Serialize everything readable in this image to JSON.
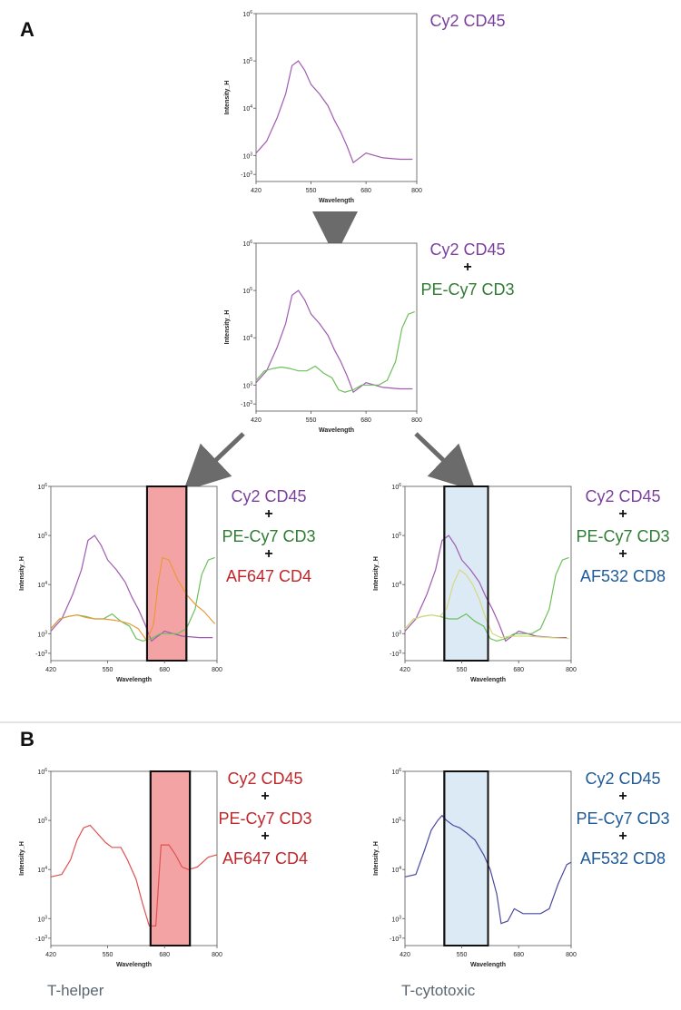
{
  "panels": {
    "A": "A",
    "B": "B"
  },
  "cell_labels": {
    "t_helper": "T-helper",
    "t_cytotoxic": "T-cytotoxic"
  },
  "colors": {
    "cy2": "#a05bb0",
    "pecy7": "#6cc05a",
    "af647": "#e89a3a",
    "af532": "#d9d880",
    "th_mix": "#e05050",
    "tc_mix": "#4a4aa0",
    "purple_text": "#7b3f9e",
    "green_text": "#2e7d32",
    "red_text": "#c0262a",
    "blue_text": "#1f5a99",
    "red_box": "#f4a3a5",
    "blue_box": "#dbeaf5",
    "arrow": "#6b6b6b"
  },
  "chart_data": [
    {
      "id": "A1",
      "type": "line",
      "xlabel": "Wavelength",
      "ylabel": "Intensity_H",
      "xticks": [
        420,
        550,
        680,
        800
      ],
      "yticks": [
        "10^6",
        "10^5",
        "10^4",
        "10^3",
        "-10^3"
      ],
      "xlim": [
        420,
        800
      ],
      "ylim_log10": [
        2.45,
        6
      ],
      "series": [
        {
          "key": "cy2",
          "x": [
            420,
            445,
            470,
            490,
            505,
            520,
            535,
            550,
            570,
            590,
            605,
            620,
            635,
            650,
            680,
            720,
            760,
            790
          ],
          "y": [
            3.05,
            3.3,
            3.8,
            4.3,
            4.9,
            5.0,
            4.8,
            4.5,
            4.3,
            4.05,
            3.75,
            3.5,
            3.2,
            2.85,
            3.05,
            2.95,
            2.92,
            2.92
          ]
        }
      ],
      "legend": [
        {
          "text": "Cy2 CD45",
          "color": "purple_text"
        }
      ]
    },
    {
      "id": "A2",
      "type": "line",
      "xlabel": "Wavelength",
      "ylabel": "Intensity_H",
      "xticks": [
        420,
        550,
        680,
        800
      ],
      "yticks": [
        "10^6",
        "10^5",
        "10^4",
        "10^3",
        "-10^3"
      ],
      "xlim": [
        420,
        800
      ],
      "ylim_log10": [
        2.45,
        6
      ],
      "series": [
        {
          "key": "cy2",
          "x": [
            420,
            445,
            470,
            490,
            505,
            520,
            535,
            550,
            570,
            590,
            605,
            620,
            635,
            650,
            680,
            720,
            760,
            790
          ],
          "y": [
            3.05,
            3.3,
            3.8,
            4.3,
            4.9,
            5.0,
            4.8,
            4.5,
            4.3,
            4.05,
            3.75,
            3.5,
            3.2,
            2.85,
            3.05,
            2.95,
            2.92,
            2.92
          ]
        },
        {
          "key": "pecy7",
          "x": [
            420,
            440,
            460,
            480,
            500,
            520,
            540,
            560,
            580,
            600,
            615,
            630,
            650,
            670,
            690,
            710,
            730,
            750,
            765,
            780,
            795
          ],
          "y": [
            3.1,
            3.3,
            3.35,
            3.38,
            3.35,
            3.3,
            3.3,
            3.4,
            3.25,
            3.15,
            2.9,
            2.85,
            2.9,
            3.0,
            3.0,
            3.0,
            3.1,
            3.5,
            4.2,
            4.5,
            4.55
          ]
        }
      ],
      "legend": [
        {
          "text": "Cy2 CD45",
          "color": "purple_text"
        },
        {
          "text": "PE-Cy7 CD3",
          "color": "green_text"
        }
      ]
    },
    {
      "id": "A3",
      "type": "line",
      "xlabel": "Wavelength",
      "ylabel": "Intensity_H",
      "xticks": [
        420,
        550,
        680,
        800
      ],
      "yticks": [
        "10^6",
        "10^5",
        "10^4",
        "10^3",
        "-10^3"
      ],
      "xlim": [
        420,
        800
      ],
      "ylim_log10": [
        2.45,
        6
      ],
      "highlight": {
        "x0": 640,
        "x1": 730,
        "color": "red_box"
      },
      "series": [
        {
          "key": "cy2",
          "x": [
            420,
            445,
            470,
            490,
            505,
            520,
            535,
            550,
            570,
            590,
            605,
            620,
            635,
            650,
            680,
            720,
            760,
            790
          ],
          "y": [
            3.05,
            3.3,
            3.8,
            4.3,
            4.9,
            5.0,
            4.8,
            4.5,
            4.3,
            4.05,
            3.75,
            3.5,
            3.2,
            2.85,
            3.05,
            2.95,
            2.92,
            2.92
          ]
        },
        {
          "key": "pecy7",
          "x": [
            420,
            440,
            460,
            480,
            500,
            520,
            540,
            560,
            580,
            600,
            615,
            630,
            650,
            670,
            690,
            710,
            730,
            750,
            765,
            780,
            795
          ],
          "y": [
            3.1,
            3.3,
            3.35,
            3.38,
            3.35,
            3.3,
            3.3,
            3.4,
            3.25,
            3.15,
            2.9,
            2.85,
            2.9,
            3.0,
            3.0,
            3.0,
            3.1,
            3.5,
            4.2,
            4.5,
            4.55
          ]
        },
        {
          "key": "af647",
          "x": [
            420,
            440,
            460,
            480,
            500,
            520,
            540,
            560,
            580,
            600,
            620,
            640,
            655,
            665,
            675,
            690,
            710,
            730,
            750,
            770,
            795
          ],
          "y": [
            3.1,
            3.3,
            3.35,
            3.38,
            3.33,
            3.3,
            3.3,
            3.28,
            3.25,
            3.2,
            3.1,
            2.85,
            3.2,
            4.0,
            4.55,
            4.5,
            4.1,
            3.8,
            3.6,
            3.45,
            3.2
          ]
        }
      ],
      "legend": [
        {
          "text": "Cy2 CD45",
          "color": "purple_text"
        },
        {
          "text": "PE-Cy7 CD3",
          "color": "green_text"
        },
        {
          "text": "AF647 CD4",
          "color": "red_text"
        }
      ]
    },
    {
      "id": "A4",
      "type": "line",
      "xlabel": "Wavelength",
      "ylabel": "Intensity_H",
      "xticks": [
        420,
        550,
        680,
        800
      ],
      "yticks": [
        "10^6",
        "10^5",
        "10^4",
        "10^3",
        "-10^3"
      ],
      "xlim": [
        420,
        800
      ],
      "ylim_log10": [
        2.45,
        6
      ],
      "highlight": {
        "x0": 510,
        "x1": 610,
        "color": "blue_box"
      },
      "series": [
        {
          "key": "cy2",
          "x": [
            420,
            445,
            470,
            490,
            505,
            520,
            535,
            550,
            570,
            590,
            605,
            620,
            635,
            650,
            680,
            720,
            760,
            790
          ],
          "y": [
            3.05,
            3.3,
            3.8,
            4.3,
            4.9,
            5.0,
            4.8,
            4.5,
            4.3,
            4.05,
            3.75,
            3.5,
            3.2,
            2.85,
            3.05,
            2.95,
            2.92,
            2.92
          ]
        },
        {
          "key": "pecy7",
          "x": [
            420,
            440,
            460,
            480,
            500,
            520,
            540,
            560,
            580,
            600,
            615,
            630,
            650,
            670,
            690,
            710,
            730,
            750,
            765,
            780,
            795
          ],
          "y": [
            3.1,
            3.3,
            3.35,
            3.38,
            3.35,
            3.3,
            3.3,
            3.4,
            3.25,
            3.15,
            2.9,
            2.85,
            2.9,
            3.0,
            3.0,
            3.0,
            3.1,
            3.5,
            4.2,
            4.5,
            4.55
          ]
        },
        {
          "key": "af532",
          "x": [
            420,
            440,
            460,
            480,
            500,
            515,
            530,
            545,
            560,
            575,
            590,
            605,
            620,
            640,
            660,
            700,
            750,
            795
          ],
          "y": [
            3.1,
            3.3,
            3.35,
            3.38,
            3.35,
            3.5,
            4.0,
            4.3,
            4.2,
            4.0,
            3.7,
            3.3,
            3.0,
            2.92,
            2.95,
            2.95,
            2.92,
            2.9
          ]
        }
      ],
      "legend": [
        {
          "text": "Cy2 CD45",
          "color": "purple_text"
        },
        {
          "text": "PE-Cy7 CD3",
          "color": "green_text"
        },
        {
          "text": "AF532 CD8",
          "color": "blue_text"
        }
      ]
    },
    {
      "id": "B1",
      "type": "line",
      "xlabel": "Wavelength",
      "ylabel": "Intensity_H",
      "xticks": [
        420,
        550,
        680,
        800
      ],
      "yticks": [
        "10^6",
        "10^5",
        "10^4",
        "10^3",
        "-10^3"
      ],
      "xlim": [
        420,
        800
      ],
      "ylim_log10": [
        2.45,
        6
      ],
      "highlight": {
        "x0": 648,
        "x1": 738,
        "color": "red_box"
      },
      "series": [
        {
          "key": "th_mix",
          "x": [
            420,
            445,
            465,
            480,
            495,
            510,
            525,
            545,
            560,
            580,
            595,
            615,
            630,
            645,
            660,
            672,
            690,
            705,
            720,
            735,
            755,
            780,
            800
          ],
          "y": [
            3.85,
            3.9,
            4.2,
            4.6,
            4.85,
            4.9,
            4.75,
            4.55,
            4.45,
            4.45,
            4.2,
            3.8,
            3.3,
            2.85,
            2.85,
            4.5,
            4.5,
            4.3,
            4.05,
            4.0,
            4.05,
            4.25,
            4.3
          ]
        }
      ],
      "legend": [
        {
          "text": "Cy2 CD45",
          "color": "red_text"
        },
        {
          "text": "PE-Cy7 CD3",
          "color": "red_text"
        },
        {
          "text": "AF647 CD4",
          "color": "red_text"
        }
      ]
    },
    {
      "id": "B2",
      "type": "line",
      "xlabel": "Wavelength",
      "ylabel": "Intensity_H",
      "xticks": [
        420,
        550,
        680,
        800
      ],
      "yticks": [
        "10^6",
        "10^5",
        "10^4",
        "10^3",
        "-10^3"
      ],
      "xlim": [
        420,
        800
      ],
      "ylim_log10": [
        2.45,
        6
      ],
      "highlight": {
        "x0": 510,
        "x1": 610,
        "color": "blue_box"
      },
      "series": [
        {
          "key": "tc_mix",
          "x": [
            420,
            445,
            465,
            480,
            495,
            505,
            515,
            530,
            545,
            560,
            580,
            600,
            615,
            630,
            640,
            655,
            670,
            690,
            710,
            730,
            750,
            770,
            790,
            800
          ],
          "y": [
            3.85,
            3.9,
            4.4,
            4.8,
            5.0,
            5.1,
            5.0,
            4.9,
            4.85,
            4.75,
            4.6,
            4.3,
            4.0,
            3.5,
            2.9,
            2.95,
            3.2,
            3.1,
            3.1,
            3.1,
            3.2,
            3.7,
            4.1,
            4.15
          ]
        }
      ],
      "legend": [
        {
          "text": "Cy2 CD45",
          "color": "blue_text"
        },
        {
          "text": "PE-Cy7 CD3",
          "color": "blue_text"
        },
        {
          "text": "AF532 CD8",
          "color": "blue_text"
        }
      ]
    }
  ]
}
